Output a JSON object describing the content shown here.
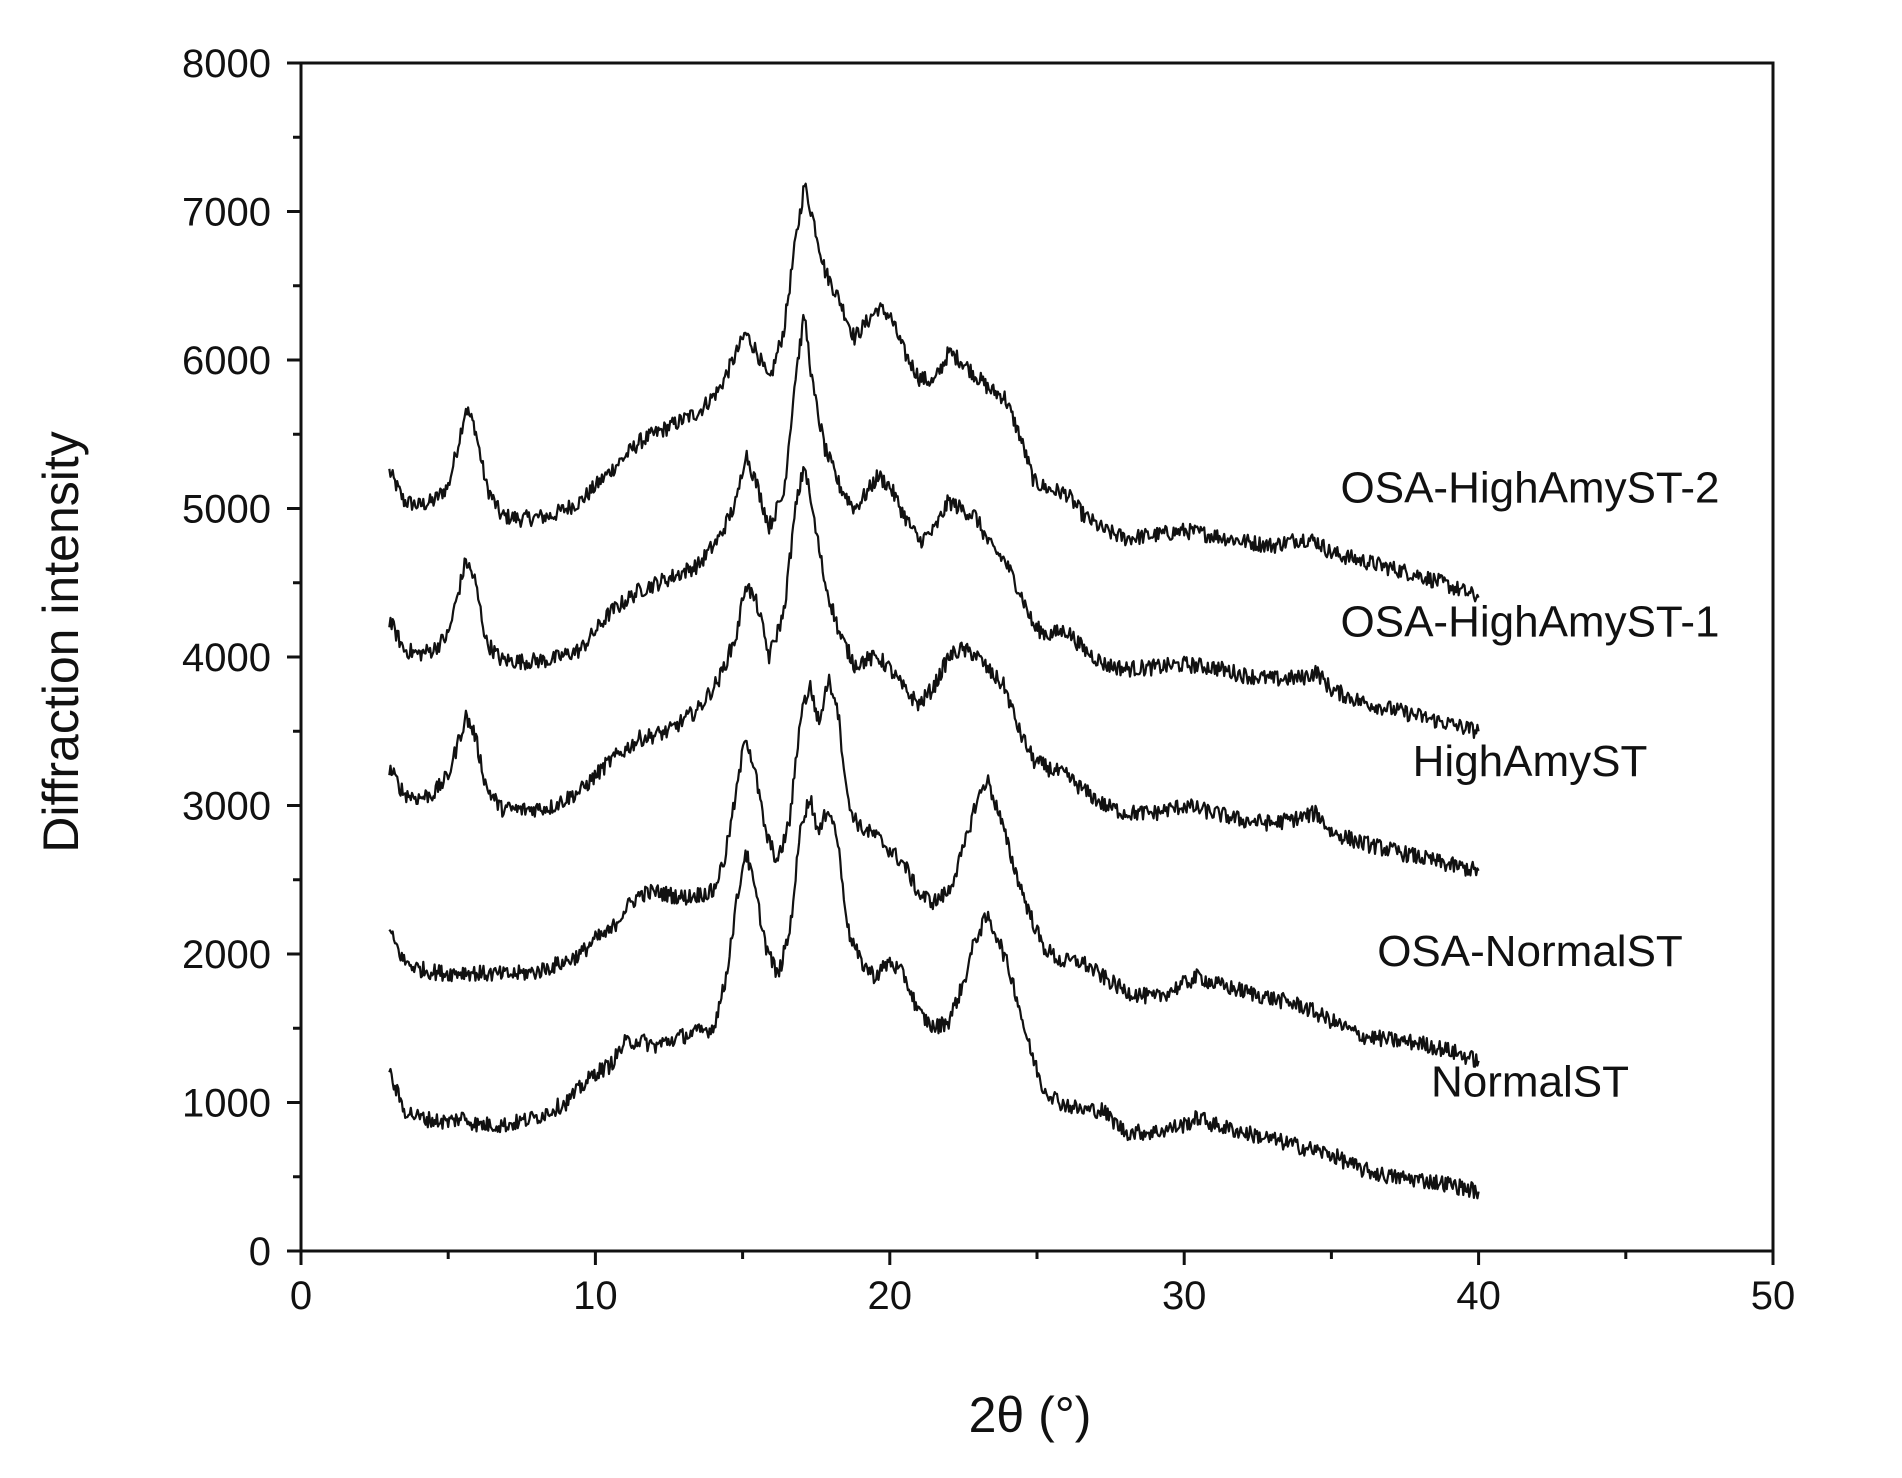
{
  "chart_data": {
    "type": "line",
    "xlabel": "2θ (°)",
    "ylabel": "Diffraction intensity",
    "xlim": [
      0,
      50
    ],
    "ylim": [
      0,
      8000
    ],
    "x_ticks": [
      0,
      10,
      20,
      30,
      40,
      50
    ],
    "y_ticks": [
      0,
      1000,
      2000,
      3000,
      4000,
      5000,
      6000,
      7000,
      8000
    ],
    "grid": false,
    "legend": "none (direct labels at right end of each curve)",
    "line_color": "#111111",
    "series": [
      {
        "name": "OSA-HighAmyST-2",
        "x": [
          3.0,
          3.5,
          4.0,
          4.5,
          5.0,
          5.3,
          5.6,
          5.9,
          6.3,
          6.8,
          7.5,
          8.5,
          9.5,
          10.5,
          11.5,
          12.5,
          13.5,
          14.2,
          14.8,
          15.1,
          15.5,
          15.9,
          16.4,
          16.8,
          17.1,
          17.4,
          17.8,
          18.3,
          18.8,
          19.2,
          19.6,
          20.0,
          20.5,
          21.0,
          21.5,
          22.0,
          22.4,
          22.9,
          23.4,
          23.9,
          24.4,
          24.9,
          25.4,
          26.0,
          26.6,
          27.3,
          28.0,
          29.0,
          30.0,
          31.0,
          32.0,
          33.0,
          34.0,
          34.5,
          35.0,
          36.0,
          37.0,
          38.0,
          39.0,
          40.0
        ],
        "y": [
          5250,
          5050,
          5020,
          5050,
          5150,
          5400,
          5680,
          5550,
          5150,
          4950,
          4930,
          4950,
          5050,
          5250,
          5450,
          5550,
          5650,
          5800,
          6050,
          6180,
          6050,
          5850,
          6200,
          6800,
          7180,
          6950,
          6600,
          6400,
          6150,
          6250,
          6350,
          6300,
          6050,
          5880,
          5850,
          6050,
          6000,
          5900,
          5800,
          5750,
          5500,
          5180,
          5130,
          5100,
          4950,
          4850,
          4800,
          4820,
          4850,
          4820,
          4780,
          4750,
          4800,
          4780,
          4700,
          4650,
          4600,
          4550,
          4480,
          4400
        ]
      },
      {
        "name": "OSA-HighAmyST-1",
        "x": [
          3.0,
          3.5,
          4.0,
          4.5,
          5.0,
          5.3,
          5.6,
          5.9,
          6.3,
          6.8,
          7.5,
          8.5,
          9.5,
          10.5,
          11.5,
          12.5,
          13.5,
          14.2,
          14.8,
          15.1,
          15.5,
          15.9,
          16.4,
          16.8,
          17.1,
          17.4,
          17.8,
          18.3,
          18.8,
          19.2,
          19.6,
          20.0,
          20.5,
          21.0,
          21.5,
          22.0,
          22.4,
          22.9,
          23.4,
          23.9,
          24.4,
          24.9,
          25.4,
          26.0,
          26.6,
          27.3,
          28.0,
          29.0,
          30.0,
          31.0,
          32.0,
          33.0,
          34.0,
          34.5,
          35.0,
          36.0,
          37.0,
          38.0,
          39.0,
          40.0
        ],
        "y": [
          4250,
          4050,
          4020,
          4050,
          4150,
          4400,
          4650,
          4520,
          4100,
          3980,
          3970,
          3980,
          4050,
          4300,
          4450,
          4530,
          4620,
          4800,
          5050,
          5380,
          5150,
          4880,
          5100,
          5900,
          6300,
          5800,
          5400,
          5150,
          5000,
          5100,
          5220,
          5150,
          4950,
          4780,
          4850,
          5050,
          5000,
          4950,
          4750,
          4650,
          4450,
          4200,
          4150,
          4180,
          4050,
          3950,
          3920,
          3930,
          3950,
          3930,
          3880,
          3850,
          3860,
          3900,
          3780,
          3700,
          3650,
          3600,
          3550,
          3500
        ]
      },
      {
        "name": "HighAmyST",
        "x": [
          3.0,
          3.5,
          4.0,
          4.5,
          5.0,
          5.3,
          5.6,
          5.9,
          6.3,
          6.8,
          7.5,
          8.5,
          9.5,
          10.5,
          11.5,
          12.5,
          13.5,
          14.2,
          14.8,
          15.1,
          15.5,
          15.9,
          16.4,
          16.8,
          17.1,
          17.4,
          17.8,
          18.3,
          18.8,
          19.2,
          19.6,
          20.0,
          20.5,
          21.0,
          21.5,
          22.0,
          22.4,
          22.9,
          23.4,
          23.9,
          24.4,
          24.9,
          25.4,
          26.0,
          26.6,
          27.3,
          28.0,
          29.0,
          30.0,
          31.0,
          32.0,
          33.0,
          34.0,
          34.5,
          35.0,
          36.0,
          37.0,
          38.0,
          39.0,
          40.0
        ],
        "y": [
          3250,
          3080,
          3050,
          3080,
          3200,
          3400,
          3600,
          3480,
          3120,
          2980,
          2970,
          2990,
          3100,
          3300,
          3450,
          3500,
          3650,
          3850,
          4150,
          4500,
          4350,
          4000,
          4300,
          5000,
          5300,
          4950,
          4500,
          4150,
          3950,
          3980,
          4000,
          3920,
          3780,
          3680,
          3800,
          4000,
          4050,
          4020,
          3900,
          3800,
          3500,
          3300,
          3250,
          3200,
          3100,
          3000,
          2950,
          2950,
          3000,
          2950,
          2900,
          2880,
          2920,
          2950,
          2820,
          2750,
          2700,
          2650,
          2600,
          2560
        ]
      },
      {
        "name": "OSA-NormalST",
        "x": [
          3.0,
          3.5,
          4.0,
          4.5,
          5.0,
          5.5,
          6.0,
          7.0,
          8.0,
          9.0,
          9.5,
          10.0,
          10.5,
          11.0,
          11.5,
          12.0,
          13.0,
          14.0,
          14.4,
          14.8,
          15.1,
          15.4,
          15.8,
          16.2,
          16.6,
          17.0,
          17.3,
          17.6,
          17.9,
          18.2,
          18.6,
          19.0,
          19.5,
          20.0,
          20.5,
          21.0,
          21.5,
          22.0,
          22.5,
          22.9,
          23.3,
          23.7,
          24.2,
          24.7,
          25.2,
          25.8,
          26.5,
          27.2,
          28.0,
          29.0,
          30.0,
          30.5,
          31.0,
          32.0,
          33.0,
          34.0,
          35.0,
          36.0,
          37.0,
          38.0,
          39.0,
          40.0
        ],
        "y": [
          2150,
          1950,
          1900,
          1880,
          1870,
          1880,
          1870,
          1860,
          1880,
          1950,
          2000,
          2100,
          2150,
          2300,
          2400,
          2420,
          2380,
          2420,
          2650,
          3100,
          3480,
          3250,
          2800,
          2620,
          2900,
          3650,
          3800,
          3550,
          3850,
          3700,
          3000,
          2850,
          2800,
          2700,
          2600,
          2400,
          2350,
          2420,
          2700,
          3000,
          3180,
          2950,
          2600,
          2300,
          2050,
          1950,
          1950,
          1850,
          1750,
          1700,
          1800,
          1850,
          1800,
          1750,
          1700,
          1650,
          1550,
          1450,
          1420,
          1400,
          1350,
          1280
        ]
      },
      {
        "name": "NormalST",
        "x": [
          3.0,
          3.5,
          4.0,
          4.5,
          5.0,
          5.5,
          6.0,
          7.0,
          8.0,
          9.0,
          9.5,
          10.0,
          10.5,
          11.0,
          11.5,
          12.0,
          13.0,
          14.0,
          14.4,
          14.8,
          15.1,
          15.4,
          15.8,
          16.2,
          16.6,
          17.0,
          17.3,
          17.6,
          17.9,
          18.2,
          18.6,
          19.0,
          19.5,
          20.0,
          20.5,
          21.0,
          21.5,
          22.0,
          22.5,
          22.9,
          23.3,
          23.7,
          24.2,
          24.7,
          25.2,
          25.8,
          26.5,
          27.2,
          28.0,
          29.0,
          30.0,
          30.5,
          31.0,
          32.0,
          33.0,
          34.0,
          35.0,
          36.0,
          37.0,
          38.0,
          39.0,
          40.0
        ],
        "y": [
          1200,
          950,
          900,
          880,
          870,
          900,
          850,
          850,
          900,
          1000,
          1100,
          1200,
          1250,
          1400,
          1420,
          1380,
          1450,
          1500,
          1800,
          2350,
          2700,
          2450,
          2050,
          1850,
          2150,
          2900,
          3050,
          2800,
          3000,
          2800,
          2150,
          1950,
          1850,
          1950,
          1850,
          1600,
          1500,
          1550,
          1800,
          2100,
          2250,
          2100,
          1800,
          1400,
          1100,
          1000,
          950,
          950,
          800,
          800,
          850,
          900,
          850,
          800,
          750,
          700,
          650,
          550,
          500,
          480,
          450,
          400
        ]
      }
    ]
  }
}
